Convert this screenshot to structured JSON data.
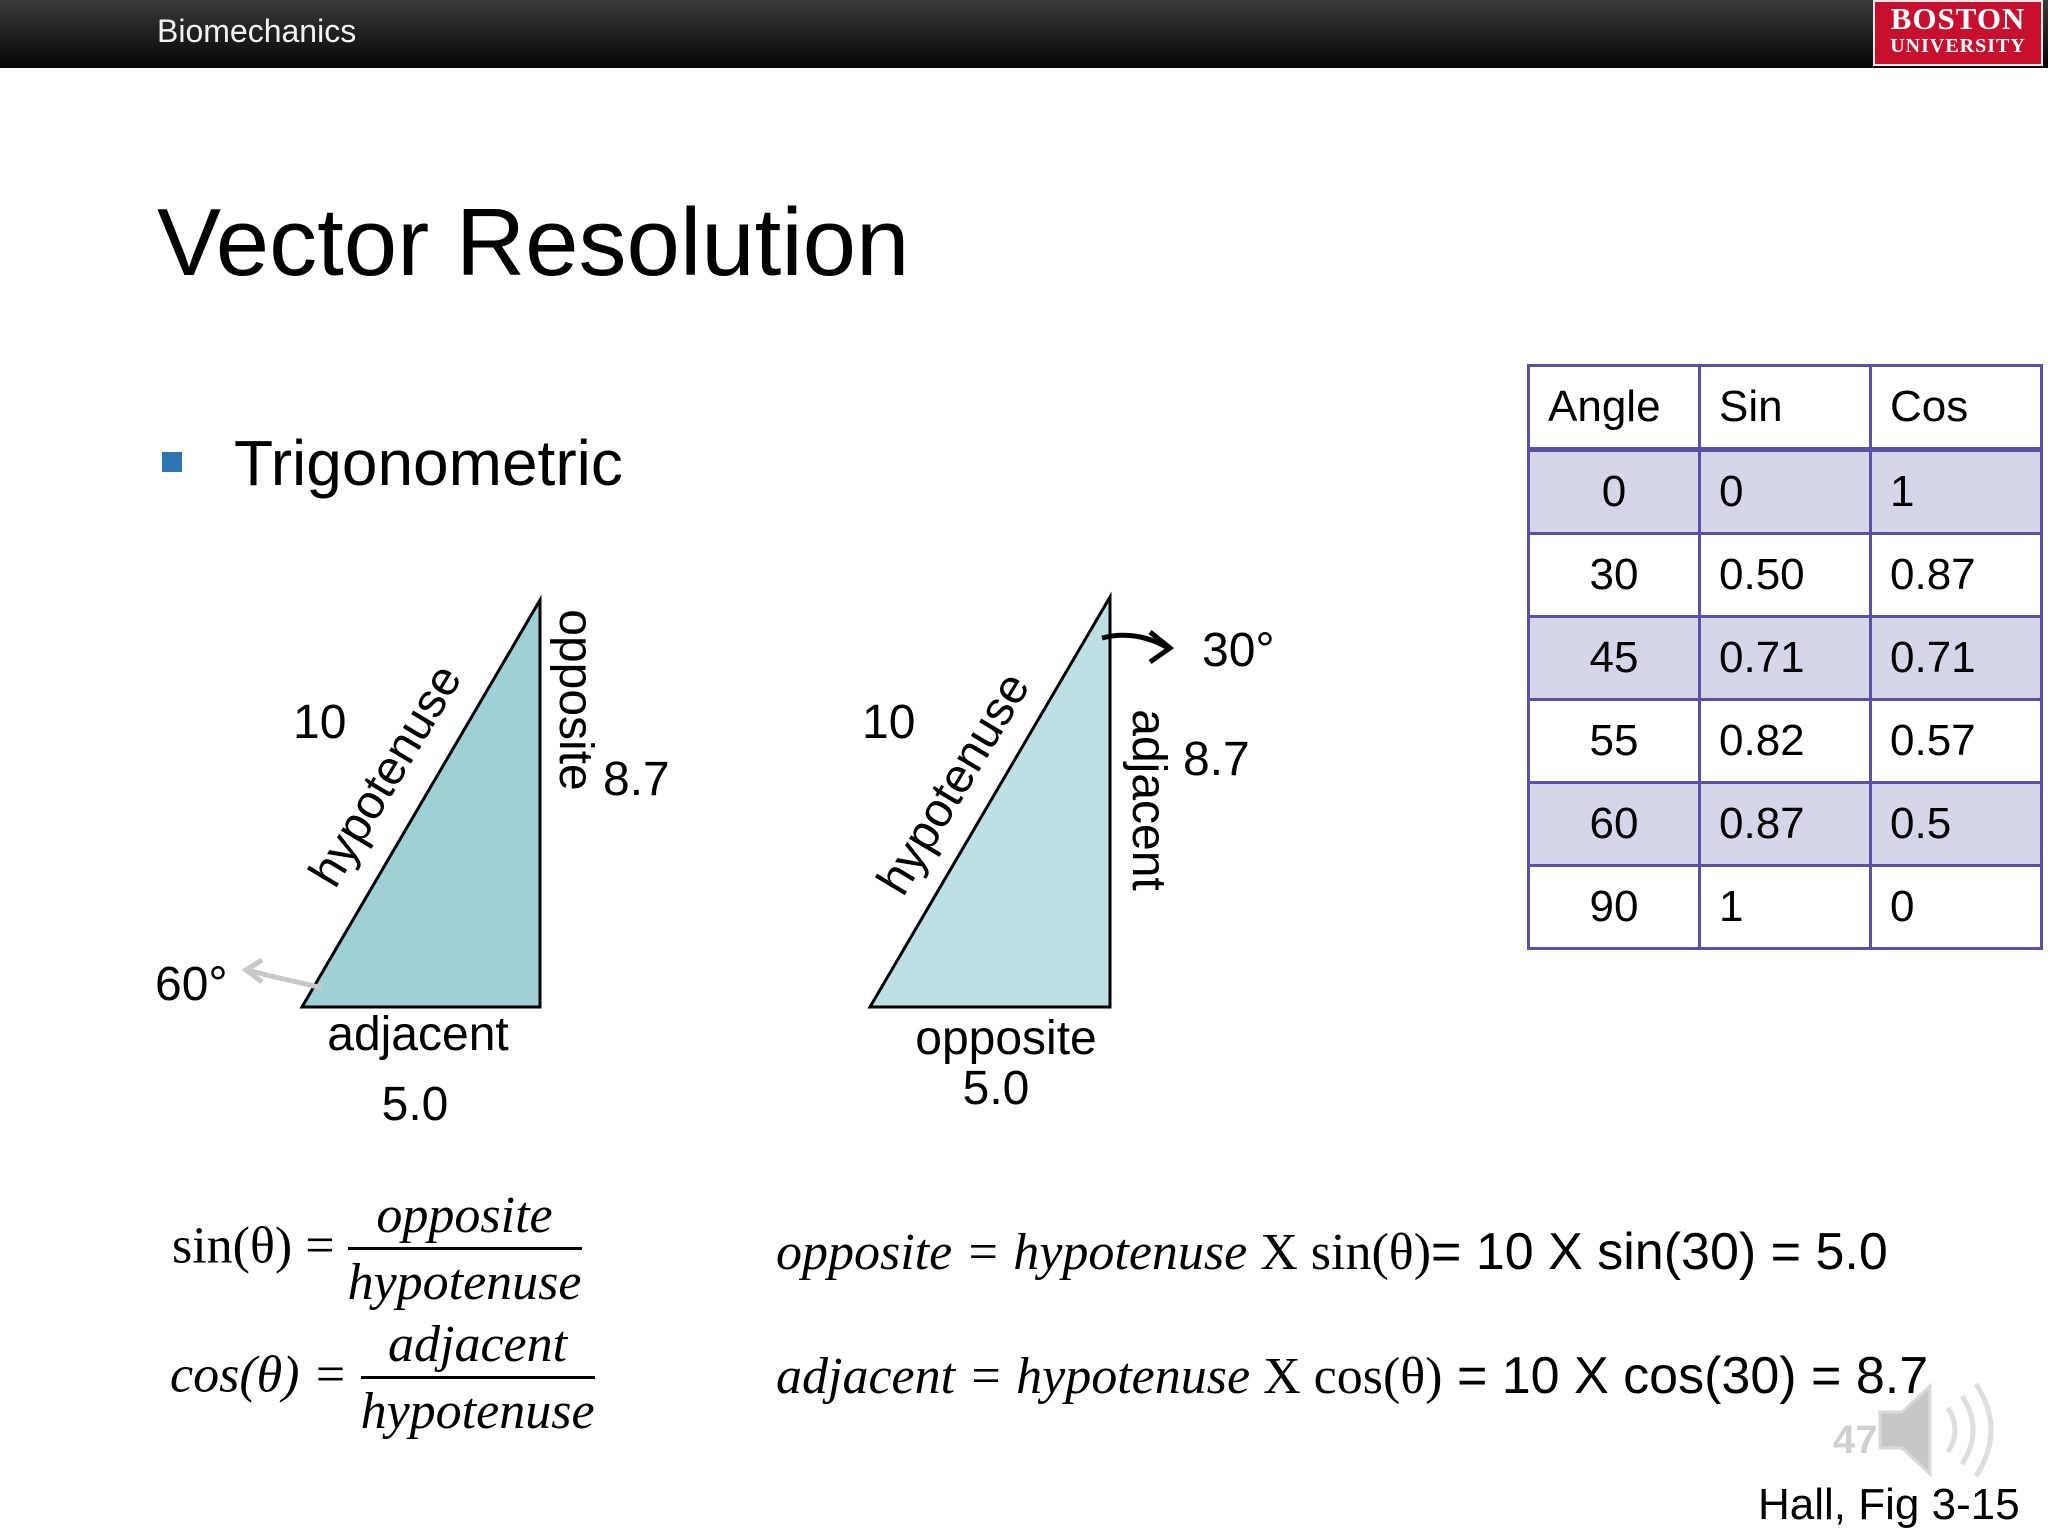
{
  "header": {
    "title": "Biomechanics",
    "logo_line1": "BOSTON",
    "logo_line2": "UNIVERSITY"
  },
  "slide": {
    "title": "Vector Resolution",
    "bullet": "Trigonometric"
  },
  "triangle1": {
    "hyp_value": "10",
    "hyp_label": "hypotenuse",
    "vert_label": "opposite",
    "vert_value": "8.7",
    "base_label": "adjacent",
    "base_value": "5.0",
    "angle": "60°"
  },
  "triangle2": {
    "hyp_value": "10",
    "hyp_label": "hypotenuse",
    "vert_label": "adjacent",
    "vert_value": "8.7",
    "base_label": "opposite",
    "base_value": "5.0",
    "angle": "30°"
  },
  "table": {
    "headers": [
      "Angle",
      "Sin",
      "Cos"
    ],
    "rows": [
      [
        "0",
        "0",
        "1"
      ],
      [
        "30",
        "0.50",
        "0.87"
      ],
      [
        "45",
        "0.71",
        "0.71"
      ],
      [
        "55",
        "0.82",
        "0.57"
      ],
      [
        "60",
        "0.87",
        "0.5"
      ],
      [
        "90",
        "1",
        "0"
      ]
    ]
  },
  "formulas": {
    "sin_lhs": "sin(θ) =",
    "sin_num": "opposite",
    "sin_den": "hypotenuse",
    "cos_lhs": "cos(θ) =",
    "cos_num": "adjacent",
    "cos_den": "hypotenuse",
    "eq1_a": "opposite =  hypotenuse",
    "eq1_b": " X sin(θ)",
    "eq1_c": "= 10 X sin(30) = 5.0",
    "eq2_a": "adjacent =  hypotenuse",
    "eq2_b": " X cos(θ)",
    "eq2_c": " = 10 X cos(30) = 8.7"
  },
  "footer": {
    "slide_number": "47",
    "citation": "Hall, Fig 3-15"
  },
  "colors": {
    "triangle1_fill": "#9fd0d6",
    "triangle2_fill": "#bde0e4",
    "table_border": "#5b4fa8",
    "table_shade": "#d6d6ea",
    "bullet": "#2e75b6",
    "logo": "#c8102e"
  },
  "icons": [
    "speaker-icon"
  ]
}
